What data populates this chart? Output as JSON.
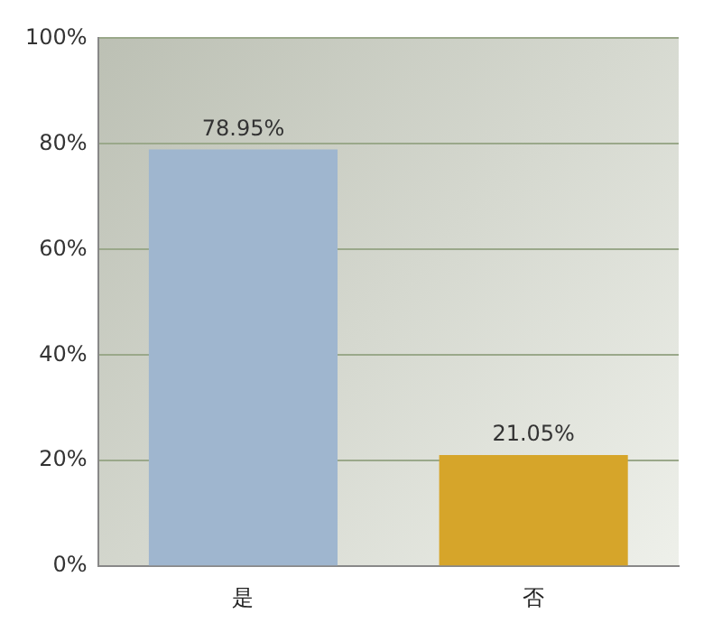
{
  "chart_data": {
    "type": "bar",
    "categories": [
      "是",
      "否"
    ],
    "values": [
      78.95,
      21.05
    ],
    "colors": [
      "#9fb6cf",
      "#d6a52a"
    ],
    "value_labels": [
      "78.95%",
      "21.05%"
    ],
    "ylim": [
      0,
      100
    ],
    "yticks": [
      {
        "value": 0,
        "label": "0%"
      },
      {
        "value": 20,
        "label": "20%"
      },
      {
        "value": 40,
        "label": "40%"
      },
      {
        "value": 60,
        "label": "60%"
      },
      {
        "value": 80,
        "label": "80%"
      },
      {
        "value": 100,
        "label": "100%"
      }
    ],
    "grid": "y",
    "legend": false
  }
}
